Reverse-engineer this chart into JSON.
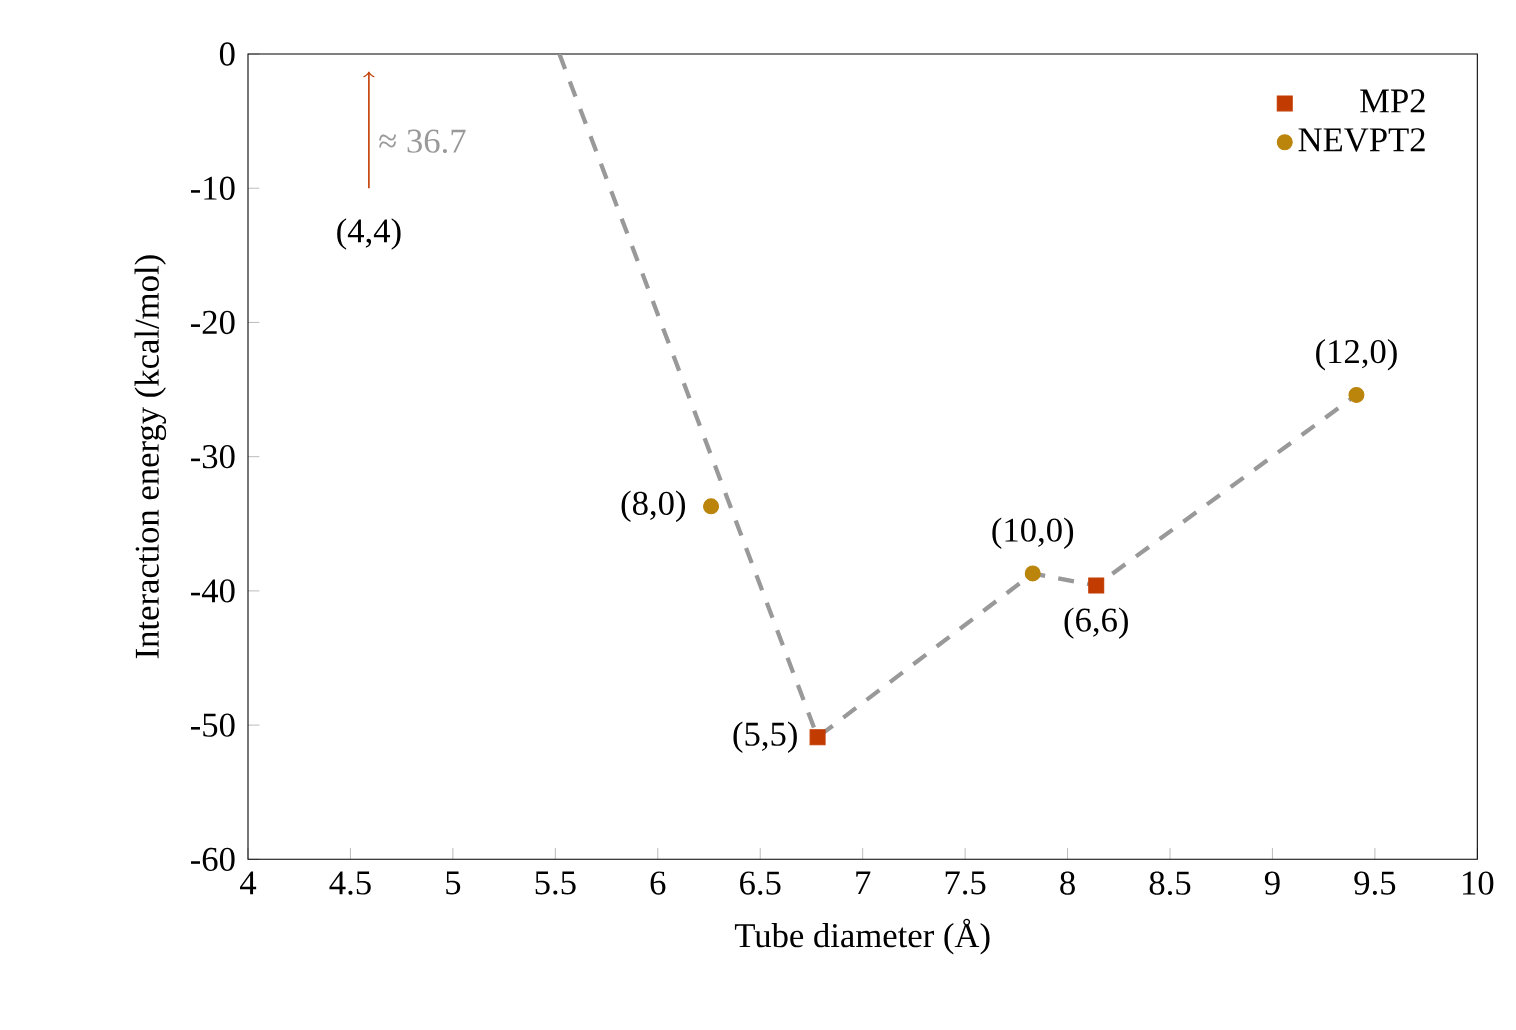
{
  "chart_data": {
    "type": "scatter",
    "xlabel": "Tube diameter (Å)",
    "ylabel": "Interaction energy (kcal/mol)",
    "xlim": [
      4,
      10
    ],
    "ylim": [
      -60,
      0
    ],
    "xticks": [
      4,
      4.5,
      5,
      5.5,
      6,
      6.5,
      7,
      7.5,
      8,
      8.5,
      9,
      9.5,
      10
    ],
    "yticks": [
      -60,
      -50,
      -40,
      -30,
      -20,
      -10,
      0
    ],
    "legend": "top right",
    "grid": false,
    "series": [
      {
        "type": "line",
        "color": "#999999",
        "line_style": "dashed",
        "marker": "none",
        "x": [
          5.52,
          6.78,
          7.83,
          8.14,
          9.41
        ],
        "values": [
          0,
          -50.9,
          -38.7,
          -39.6,
          -25.4
        ]
      },
      {
        "name": "MP2",
        "color": "#c23b00",
        "marker": "square",
        "x": [
          6.78,
          8.14
        ],
        "values": [
          -50.9,
          -39.6
        ]
      },
      {
        "name": "NEVPT2",
        "color": "#bb850c",
        "marker": "circle",
        "x": [
          6.26,
          7.83,
          9.41
        ],
        "values": [
          -33.7,
          -38.7,
          -25.4
        ]
      }
    ],
    "annotations": [
      {
        "text": "(5,5)",
        "x": 6.78,
        "y": -50.9
      },
      {
        "text": "(6,6)",
        "x": 8.14,
        "y": -39.6
      },
      {
        "text": "(8,0)",
        "x": 6.26,
        "y": -33.7
      },
      {
        "text": "(10,0)",
        "x": 7.83,
        "y": -38.7
      },
      {
        "text": "(12,0)",
        "x": 9.41,
        "y": -25.4
      },
      "(4,4)",
      "≈ 36.7"
    ]
  }
}
